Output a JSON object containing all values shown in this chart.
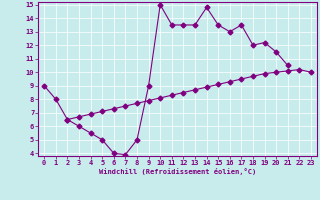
{
  "background_color": "#c8ecec",
  "line_color": "#800080",
  "grid_color": "#ffffff",
  "font_color": "#800080",
  "xlabel": "Windchill (Refroidissement éolien,°C)",
  "xlim": [
    -0.5,
    23.5
  ],
  "ylim": [
    3.8,
    15.2
  ],
  "xticks": [
    0,
    1,
    2,
    3,
    4,
    5,
    6,
    7,
    8,
    9,
    10,
    11,
    12,
    13,
    14,
    15,
    16,
    17,
    18,
    19,
    20,
    21,
    22,
    23
  ],
  "yticks": [
    4,
    5,
    6,
    7,
    8,
    9,
    10,
    11,
    12,
    13,
    14,
    15
  ],
  "s1x": [
    0,
    1,
    2,
    3,
    4,
    5,
    6,
    7,
    8,
    9,
    10,
    11,
    12,
    13,
    14,
    15,
    16,
    17,
    18,
    19,
    20,
    21
  ],
  "s1y": [
    9.0,
    8.0,
    6.5,
    6.0,
    5.5,
    5.0,
    4.0,
    3.9,
    5.0,
    9.0,
    15.0,
    13.5,
    13.5,
    13.5,
    14.8,
    13.5,
    13.0,
    13.5,
    12.0,
    12.2,
    11.5,
    10.5
  ],
  "s2x": [
    2,
    3,
    4,
    5,
    6,
    7,
    8,
    9,
    10,
    11,
    12,
    13,
    14,
    15,
    16,
    17,
    18,
    19,
    20,
    21,
    22,
    23
  ],
  "s2y": [
    6.5,
    6.7,
    6.9,
    7.1,
    7.3,
    7.5,
    7.7,
    7.9,
    8.1,
    8.3,
    8.5,
    8.7,
    8.9,
    9.1,
    9.3,
    9.5,
    9.7,
    9.9,
    10.0,
    10.1,
    10.2,
    10.0
  ],
  "marker": "D",
  "markersize": 2.5,
  "linewidth": 0.8
}
